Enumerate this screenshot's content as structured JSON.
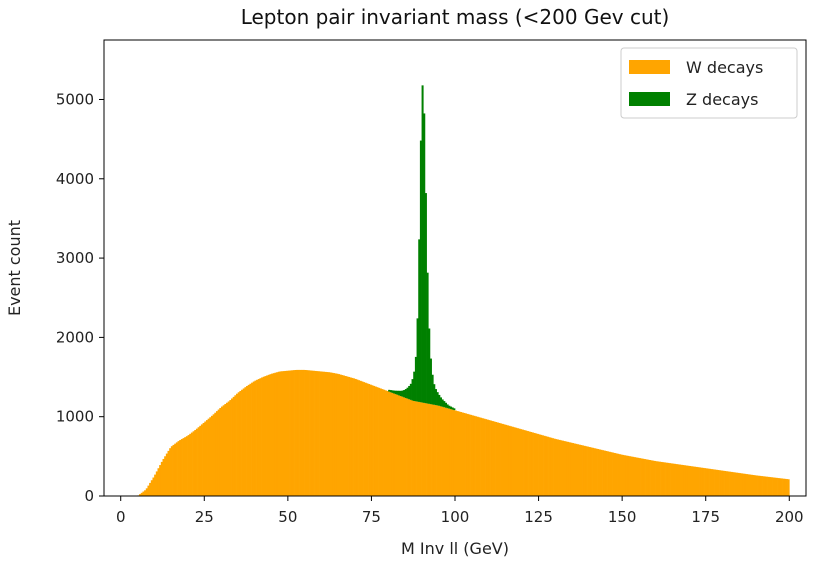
{
  "chart_data": {
    "type": "histogram",
    "title": "Lepton pair invariant mass (<200 Gev cut)",
    "xlabel": "M Inv ll (GeV)",
    "ylabel": "Event count",
    "xlim": [
      -5,
      205
    ],
    "ylim": [
      0,
      5750
    ],
    "xticks": [
      0,
      25,
      50,
      75,
      100,
      125,
      150,
      175,
      200
    ],
    "yticks": [
      0,
      1000,
      2000,
      3000,
      4000,
      5000
    ],
    "legend_position": "top-right",
    "bin_width": 0.5,
    "series": [
      {
        "name": "W decays",
        "color": "#FFA500",
        "stacked_order": 1,
        "x": [
          5,
          7.5,
          10,
          12.5,
          15,
          17.5,
          20,
          22.5,
          25,
          27.5,
          30,
          32.5,
          35,
          37.5,
          40,
          42.5,
          45,
          47.5,
          50,
          52.5,
          55,
          57.5,
          60,
          62.5,
          65,
          67.5,
          70,
          72.5,
          75,
          77.5,
          80,
          82.5,
          85,
          87.5,
          90,
          92.5,
          95,
          97.5,
          100,
          105,
          110,
          115,
          120,
          125,
          130,
          135,
          140,
          145,
          150,
          155,
          160,
          165,
          170,
          175,
          180,
          185,
          190,
          195,
          200
        ],
        "y": [
          0,
          80,
          250,
          450,
          620,
          700,
          760,
          840,
          930,
          1020,
          1120,
          1200,
          1300,
          1380,
          1450,
          1500,
          1540,
          1570,
          1580,
          1590,
          1590,
          1580,
          1570,
          1560,
          1540,
          1510,
          1480,
          1440,
          1400,
          1360,
          1320,
          1280,
          1240,
          1200,
          1180,
          1160,
          1140,
          1110,
          1080,
          1020,
          960,
          900,
          840,
          780,
          720,
          670,
          620,
          570,
          520,
          480,
          440,
          410,
          380,
          350,
          320,
          290,
          260,
          235,
          210
        ]
      },
      {
        "name": "Z decays",
        "color": "#008000",
        "stacked_order": 2,
        "x": [
          80,
          82,
          84,
          85,
          86,
          87,
          88,
          88.5,
          89,
          89.5,
          90,
          90.5,
          91,
          91.5,
          92,
          92.5,
          93,
          93.5,
          94,
          95,
          96,
          97,
          98,
          100
        ],
        "y": [
          20,
          40,
          70,
          100,
          150,
          220,
          420,
          700,
          1400,
          2700,
          3900,
          4100,
          3200,
          2100,
          1200,
          700,
          450,
          300,
          220,
          150,
          100,
          70,
          40,
          20
        ]
      }
    ]
  }
}
